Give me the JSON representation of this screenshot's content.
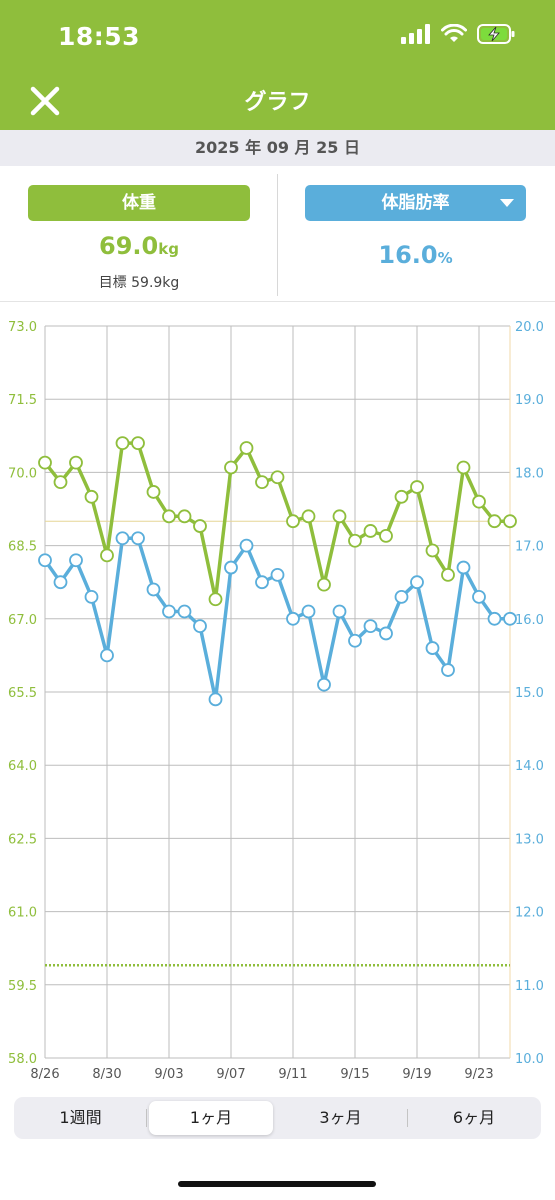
{
  "status_bar": {
    "time": "18:53"
  },
  "nav": {
    "title": "グラフ"
  },
  "date": "2025 年 09 月 25 日",
  "summary": {
    "weight_label": "体重",
    "weight_value": "69.0",
    "weight_unit": "kg",
    "goal_text": "目標 59.9kg",
    "fat_label": "体脂肪率",
    "fat_value": "16.0",
    "fat_unit": "%"
  },
  "colors": {
    "weight": "#8fbe3c",
    "fat": "#5aaedb",
    "header": "#8fbe3c"
  },
  "chart_data": {
    "type": "line",
    "x_tick_labels": [
      "8/26",
      "8/30",
      "9/03",
      "9/07",
      "9/11",
      "9/15",
      "9/19",
      "9/23"
    ],
    "dates": [
      "8/26",
      "8/27",
      "8/28",
      "8/29",
      "8/30",
      "8/31",
      "9/01",
      "9/02",
      "9/03",
      "9/04",
      "9/05",
      "9/06",
      "9/07",
      "9/08",
      "9/09",
      "9/10",
      "9/11",
      "9/12",
      "9/13",
      "9/14",
      "9/15",
      "9/16",
      "9/17",
      "9/18",
      "9/19",
      "9/20",
      "9/21",
      "9/22",
      "9/23",
      "9/24",
      "9/25"
    ],
    "y_left": {
      "min": 58.0,
      "max": 73.0,
      "ticks": [
        "58.0",
        "59.5",
        "61.0",
        "62.5",
        "64.0",
        "65.5",
        "67.0",
        "68.5",
        "70.0",
        "71.5",
        "73.0"
      ]
    },
    "y_right": {
      "min": 10.0,
      "max": 20.0,
      "ticks": [
        "10.0",
        "11.0",
        "12.0",
        "13.0",
        "14.0",
        "15.0",
        "16.0",
        "17.0",
        "18.0",
        "19.0",
        "20.0"
      ]
    },
    "series": [
      {
        "axis": "left",
        "color": "#8fbe3c",
        "values": [
          70.2,
          69.8,
          70.2,
          69.5,
          68.3,
          70.6,
          70.6,
          69.6,
          69.1,
          69.1,
          68.9,
          67.4,
          70.1,
          70.5,
          69.8,
          69.9,
          69.0,
          69.1,
          67.7,
          69.1,
          68.6,
          68.8,
          68.7,
          69.5,
          69.7,
          68.4,
          67.9,
          70.1,
          69.4,
          69.0,
          69.0
        ]
      },
      {
        "axis": "right",
        "color": "#5aaedb",
        "values": [
          16.8,
          16.5,
          16.8,
          16.3,
          15.5,
          17.1,
          17.1,
          16.4,
          16.1,
          16.1,
          15.9,
          14.9,
          16.7,
          17.0,
          16.5,
          16.6,
          16.0,
          16.1,
          15.1,
          16.1,
          15.7,
          15.9,
          15.8,
          16.3,
          16.5,
          15.6,
          15.3,
          16.7,
          16.3,
          16.0,
          16.0
        ]
      }
    ],
    "current_weight_line": 69.0,
    "goal_line": 59.9,
    "grid": true
  },
  "range_tabs": [
    {
      "label": "1週間",
      "active": false
    },
    {
      "label": "1ヶ月",
      "active": true
    },
    {
      "label": "3ヶ月",
      "active": false
    },
    {
      "label": "6ヶ月",
      "active": false
    }
  ]
}
